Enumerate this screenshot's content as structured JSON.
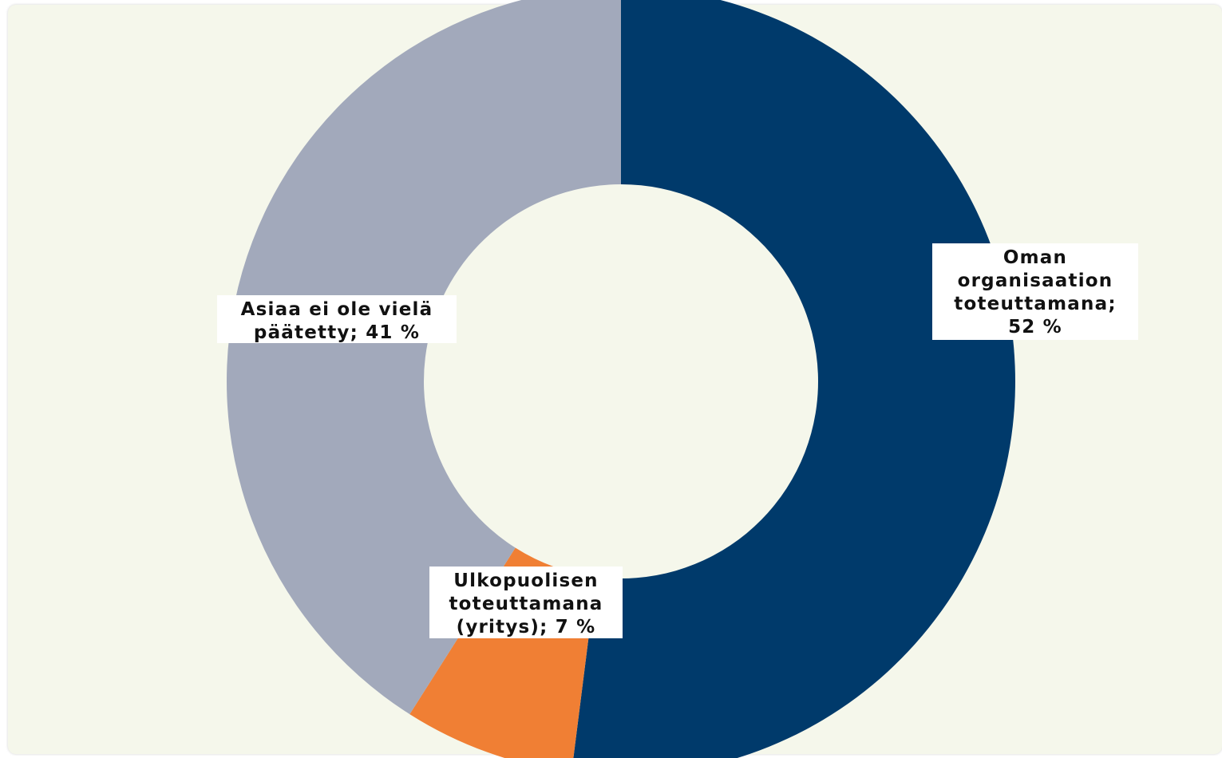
{
  "chart_data": {
    "type": "pie",
    "donut": true,
    "slices": [
      {
        "label": "Oman\norganisaation\ntoteuttamana;\n52 %",
        "value": 52,
        "color": "#003a6b"
      },
      {
        "label": "Ulkopuolisen\ntoteuttamana\n(yritys); 7 %",
        "value": 7,
        "color": "#f07f34"
      },
      {
        "label": "Asiaa ei ole vielä\npäätetty; 41 %",
        "value": 41,
        "color": "#a2a9bb"
      }
    ],
    "background": "#f5f7eb",
    "legend": "none"
  }
}
